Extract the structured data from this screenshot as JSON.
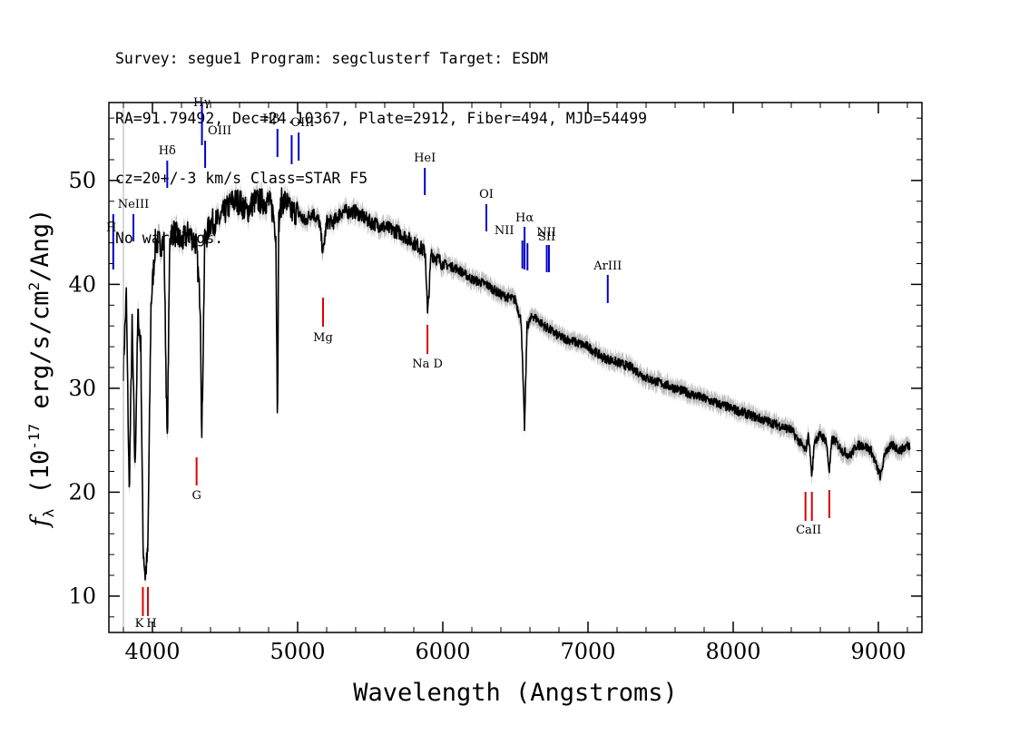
{
  "header": {
    "line1": "Survey: segue1 Program: segclusterf Target: ESDM",
    "line2": "RA=91.79492, Dec=24.10367, Plate=2912, Fiber=494, MJD=54499",
    "line3": "cz=20+/-3 km/s Class=STAR F5",
    "line4": "No warnings."
  },
  "chart_data": {
    "type": "line",
    "title": "",
    "xlabel": "Wavelength (Angstroms)",
    "ylabel": "f_λ (10^-17 erg/s/cm^2/Ang)",
    "xlim": [
      3700,
      9300
    ],
    "ylim": [
      6.5,
      57.5
    ],
    "xticks": [
      4000,
      5000,
      6000,
      7000,
      8000,
      9000
    ],
    "yticks": [
      10,
      20,
      30,
      40,
      50
    ],
    "grid": false,
    "colors": {
      "spectrum": "#000000",
      "error_band": "#bdbdbd",
      "emission": "#0000cc",
      "absorption": "#dd0000"
    },
    "series": [
      {
        "x": [
          3800,
          3820,
          3840,
          3860,
          3880,
          3900,
          3920,
          3935,
          3950,
          3968,
          3990,
          4020,
          4050,
          4080,
          4102,
          4120,
          4150,
          4200,
          4250,
          4300,
          4330,
          4340,
          4360,
          4400,
          4450,
          4500,
          4550,
          4600,
          4650,
          4700,
          4750,
          4800,
          4830,
          4850,
          4861,
          4870,
          4890,
          4920,
          4950,
          5000,
          5050,
          5100,
          5150,
          5175,
          5200,
          5250,
          5300,
          5400,
          5500,
          5600,
          5700,
          5800,
          5850,
          5880,
          5895,
          5920,
          6000,
          6100,
          6200,
          6300,
          6400,
          6500,
          6540,
          6563,
          6580,
          6620,
          6700,
          6800,
          6900,
          7000,
          7100,
          7200,
          7300,
          7400,
          7500,
          7600,
          7700,
          7800,
          7900,
          8000,
          8100,
          8200,
          8300,
          8400,
          8498,
          8520,
          8542,
          8560,
          8600,
          8640,
          8662,
          8680,
          8700,
          8750,
          8806,
          8850,
          8900,
          8950,
          9000,
          9015,
          9050,
          9100,
          9150,
          9200,
          9220
        ],
        "y": [
          32,
          39,
          20,
          36,
          22,
          37,
          34,
          15,
          12,
          14,
          38,
          44,
          44,
          44,
          24,
          45,
          45,
          44,
          45,
          44,
          38,
          25,
          44,
          46,
          46,
          47,
          48,
          48,
          47,
          48,
          48,
          48,
          47,
          45,
          27,
          46,
          48,
          48,
          47,
          47,
          46,
          47,
          46,
          43,
          46,
          46,
          47,
          47,
          46,
          45.5,
          45,
          44,
          43.5,
          43,
          37,
          43,
          42,
          41.5,
          40.5,
          40,
          39,
          38.5,
          36.5,
          26,
          36,
          37,
          36,
          35,
          34.5,
          34,
          33,
          32.5,
          32,
          31,
          30.5,
          30,
          29.5,
          29,
          28.5,
          28,
          27.5,
          27,
          26.5,
          26,
          24,
          25.5,
          21.5,
          25,
          25.5,
          25,
          22,
          25,
          25,
          24,
          23.5,
          24.5,
          24.5,
          24,
          22,
          21.5,
          24,
          24.5,
          24,
          24.5,
          24.5
        ]
      }
    ],
    "emission_lines": [
      {
        "label": "H",
        "x": 3730
      },
      {
        "label": "NeIII",
        "x": 3869
      },
      {
        "label": "Hδ",
        "x": 4102
      },
      {
        "label": "Hγ",
        "x": 4341
      },
      {
        "label": "OIII",
        "x": 4363
      },
      {
        "label": "Hβ",
        "x": 4861
      },
      {
        "label": "OIII",
        "x": 4959
      },
      {
        "label": "",
        "x": 5007
      },
      {
        "label": "HeI",
        "x": 5876
      },
      {
        "label": "OI",
        "x": 6300
      },
      {
        "label": "NII",
        "x": 6548
      },
      {
        "label": "Hα",
        "x": 6563
      },
      {
        "label": "NII",
        "x": 6583
      },
      {
        "label": "SII",
        "x": 6716
      },
      {
        "label": "",
        "x": 6731
      },
      {
        "label": "ArIII",
        "x": 7136
      }
    ],
    "absorption_lines": [
      {
        "label": "K",
        "x": 3934
      },
      {
        "label": "H",
        "x": 3969
      },
      {
        "label": "G",
        "x": 4304
      },
      {
        "label": "Mg",
        "x": 5175
      },
      {
        "label": "Na D",
        "x": 5894
      },
      {
        "label": "CaII",
        "x": 8498
      },
      {
        "label": "",
        "x": 8542
      },
      {
        "label": "",
        "x": 8662
      }
    ]
  }
}
